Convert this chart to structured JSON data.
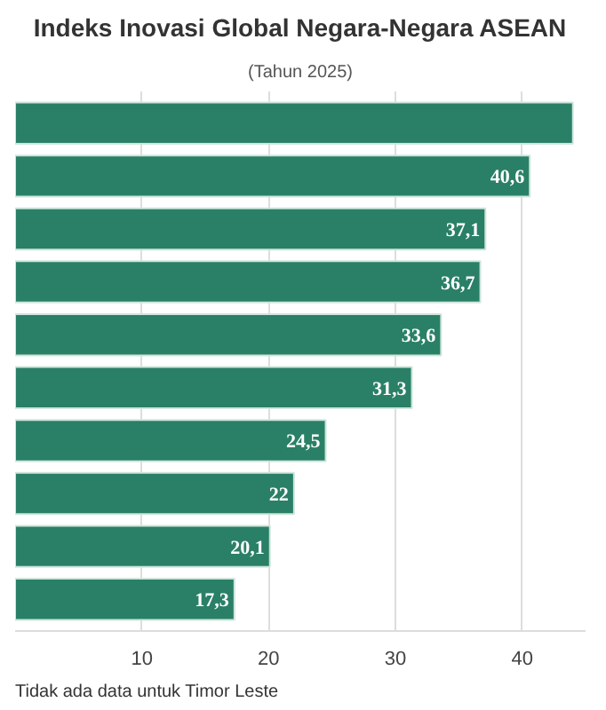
{
  "chart_data": {
    "type": "bar",
    "orientation": "horizontal",
    "title": "Indeks Inovasi Global Negara-Negara ASEAN",
    "subtitle": "(Tahun 2025)",
    "categories": [
      null,
      null,
      null,
      null,
      null,
      null,
      null,
      null,
      null,
      null
    ],
    "values": [
      44,
      40.6,
      37.1,
      36.7,
      33.6,
      31.3,
      24.5,
      22,
      20.1,
      17.3
    ],
    "value_labels": [
      null,
      "40,6",
      "37,1",
      "36,7",
      "33,6",
      "31,3",
      "24,5",
      "22",
      "20,1",
      "17,3"
    ],
    "color": "#2a8066",
    "xlim": [
      0,
      45
    ],
    "xticks": [
      10,
      20,
      30,
      40
    ],
    "grid": "x",
    "annotations": [
      "Tidak ada data untuk Timor Leste"
    ]
  }
}
